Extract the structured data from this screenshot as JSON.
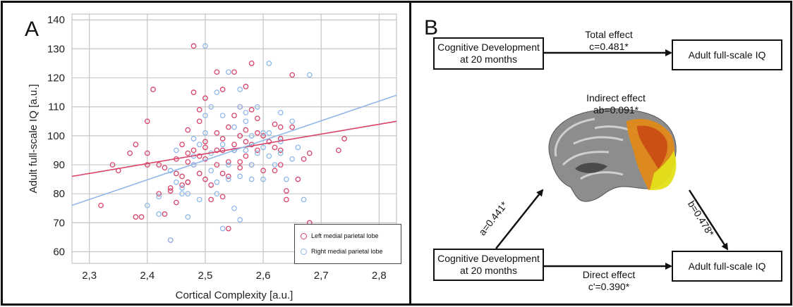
{
  "panel_a": {
    "letter": "A",
    "legend": [
      {
        "label": "Left medial parietal lobe",
        "color": "#d8446a"
      },
      {
        "label": "Right medial parietal lobe",
        "color": "#8fb8e8"
      }
    ]
  },
  "panel_b": {
    "letter": "B",
    "top_left_box": [
      "Cognitive Development",
      "at 20 months"
    ],
    "top_right_box": "Adult full-scale IQ",
    "total_effect": [
      "Total effect",
      "c=0.481*"
    ],
    "indirect_effect": [
      "Indirect effect",
      "ab=0.091*"
    ],
    "path_a": "a=0.441*",
    "path_b": "b=0.478*",
    "bottom_left_box": [
      "Cognitive Development",
      "at 20 months"
    ],
    "bottom_right_box": "Adult full-scale IQ",
    "direct_effect": [
      "Direct effect",
      "c'=0.390*"
    ],
    "brain_image": "brain-medial-parietal-overlay-icon"
  },
  "chart_data": {
    "type": "scatter",
    "title": "",
    "xlabel": "Cortical Complexity [a.u.]",
    "ylabel": "Adult full-scale IQ [a.u.]",
    "xlim": [
      2.27,
      2.83
    ],
    "ylim": [
      56,
      142
    ],
    "x_ticks": [
      "2,3",
      "2,4",
      "2,5",
      "2,6",
      "2,7",
      "2,8"
    ],
    "x_tick_values": [
      2.3,
      2.4,
      2.5,
      2.6,
      2.7,
      2.8
    ],
    "y_ticks": [
      "60",
      "70",
      "80",
      "90",
      "100",
      "110",
      "120",
      "130",
      "140"
    ],
    "y_tick_values": [
      60,
      70,
      80,
      90,
      100,
      110,
      120,
      130,
      140
    ],
    "grid": true,
    "legend_position": "bottom-right",
    "series": [
      {
        "name": "Left medial parietal lobe",
        "color": "#d8446a",
        "fit": {
          "x": [
            2.27,
            2.83
          ],
          "y": [
            86,
            105
          ]
        },
        "points": [
          [
            2.32,
            76
          ],
          [
            2.34,
            90
          ],
          [
            2.35,
            88
          ],
          [
            2.37,
            94
          ],
          [
            2.38,
            97
          ],
          [
            2.38,
            72
          ],
          [
            2.39,
            72
          ],
          [
            2.4,
            94
          ],
          [
            2.4,
            105
          ],
          [
            2.4,
            90
          ],
          [
            2.41,
            116
          ],
          [
            2.42,
            90
          ],
          [
            2.42,
            80
          ],
          [
            2.43,
            73
          ],
          [
            2.43,
            89
          ],
          [
            2.44,
            81
          ],
          [
            2.44,
            82
          ],
          [
            2.44,
            64
          ],
          [
            2.45,
            77
          ],
          [
            2.45,
            87
          ],
          [
            2.45,
            92
          ],
          [
            2.46,
            83
          ],
          [
            2.46,
            86
          ],
          [
            2.46,
            97
          ],
          [
            2.47,
            94
          ],
          [
            2.47,
            84
          ],
          [
            2.47,
            91
          ],
          [
            2.47,
            102
          ],
          [
            2.47,
            84
          ],
          [
            2.48,
            131
          ],
          [
            2.48,
            115
          ],
          [
            2.48,
            95
          ],
          [
            2.48,
            90
          ],
          [
            2.49,
            93
          ],
          [
            2.49,
            87
          ],
          [
            2.49,
            105
          ],
          [
            2.49,
            109
          ],
          [
            2.5,
            113
          ],
          [
            2.5,
            85
          ],
          [
            2.5,
            96
          ],
          [
            2.5,
            92
          ],
          [
            2.5,
            98
          ],
          [
            2.51,
            83
          ],
          [
            2.51,
            78
          ],
          [
            2.52,
            90
          ],
          [
            2.52,
            95
          ],
          [
            2.52,
            101
          ],
          [
            2.52,
            122
          ],
          [
            2.53,
            116
          ],
          [
            2.53,
            99
          ],
          [
            2.53,
            87
          ],
          [
            2.53,
            79
          ],
          [
            2.53,
            95
          ],
          [
            2.54,
            91
          ],
          [
            2.54,
            68
          ],
          [
            2.54,
            86
          ],
          [
            2.54,
            103
          ],
          [
            2.55,
            122
          ],
          [
            2.55,
            97
          ],
          [
            2.55,
            107
          ],
          [
            2.55,
            95
          ],
          [
            2.56,
            91
          ],
          [
            2.56,
            89
          ],
          [
            2.56,
            110
          ],
          [
            2.56,
            100
          ],
          [
            2.57,
            117
          ],
          [
            2.57,
            98
          ],
          [
            2.57,
            93
          ],
          [
            2.57,
            102
          ],
          [
            2.58,
            125
          ],
          [
            2.58,
            97
          ],
          [
            2.58,
            90
          ],
          [
            2.58,
            109
          ],
          [
            2.59,
            106
          ],
          [
            2.59,
            101
          ],
          [
            2.59,
            95
          ],
          [
            2.6,
            88
          ],
          [
            2.6,
            100
          ],
          [
            2.61,
            98
          ],
          [
            2.62,
            104
          ],
          [
            2.62,
            96
          ],
          [
            2.62,
            88
          ],
          [
            2.63,
            99
          ],
          [
            2.63,
            95
          ],
          [
            2.63,
            90
          ],
          [
            2.63,
            103
          ],
          [
            2.64,
            81
          ],
          [
            2.64,
            78
          ],
          [
            2.65,
            121
          ],
          [
            2.65,
            103
          ],
          [
            2.66,
            85
          ],
          [
            2.67,
            92
          ],
          [
            2.68,
            94
          ],
          [
            2.68,
            70
          ],
          [
            2.73,
            95
          ],
          [
            2.74,
            99
          ]
        ]
      },
      {
        "name": "Right medial parietal lobe",
        "color": "#8fb8e8",
        "fit": {
          "x": [
            2.27,
            2.83
          ],
          "y": [
            76,
            114
          ]
        },
        "points": [
          [
            2.4,
            76
          ],
          [
            2.42,
            73
          ],
          [
            2.42,
            79
          ],
          [
            2.44,
            88
          ],
          [
            2.44,
            64
          ],
          [
            2.45,
            95
          ],
          [
            2.45,
            84
          ],
          [
            2.46,
            82
          ],
          [
            2.46,
            80
          ],
          [
            2.47,
            72
          ],
          [
            2.47,
            80
          ],
          [
            2.48,
            90
          ],
          [
            2.48,
            99
          ],
          [
            2.48,
            93
          ],
          [
            2.49,
            97
          ],
          [
            2.49,
            78
          ],
          [
            2.5,
            131
          ],
          [
            2.5,
            101
          ],
          [
            2.5,
            107
          ],
          [
            2.51,
            94
          ],
          [
            2.51,
            88
          ],
          [
            2.51,
            110
          ],
          [
            2.52,
            115
          ],
          [
            2.52,
            80
          ],
          [
            2.52,
            84
          ],
          [
            2.53,
            107
          ],
          [
            2.53,
            68
          ],
          [
            2.53,
            97
          ],
          [
            2.54,
            122
          ],
          [
            2.54,
            90
          ],
          [
            2.54,
            85
          ],
          [
            2.55,
            95
          ],
          [
            2.55,
            103
          ],
          [
            2.55,
            75
          ],
          [
            2.56,
            116
          ],
          [
            2.56,
            110
          ],
          [
            2.56,
            86
          ],
          [
            2.56,
            71
          ],
          [
            2.57,
            108
          ],
          [
            2.57,
            105
          ],
          [
            2.57,
            95
          ],
          [
            2.58,
            100
          ],
          [
            2.58,
            90
          ],
          [
            2.58,
            85
          ],
          [
            2.59,
            110
          ],
          [
            2.59,
            94
          ],
          [
            2.6,
            101
          ],
          [
            2.6,
            96
          ],
          [
            2.6,
            85
          ],
          [
            2.61,
            125
          ],
          [
            2.61,
            101
          ],
          [
            2.61,
            93
          ],
          [
            2.62,
            90
          ],
          [
            2.63,
            108
          ],
          [
            2.63,
            98
          ],
          [
            2.63,
            94
          ],
          [
            2.64,
            85
          ],
          [
            2.65,
            105
          ],
          [
            2.65,
            92
          ],
          [
            2.66,
            96
          ],
          [
            2.67,
            78
          ],
          [
            2.68,
            121
          ]
        ]
      }
    ]
  }
}
